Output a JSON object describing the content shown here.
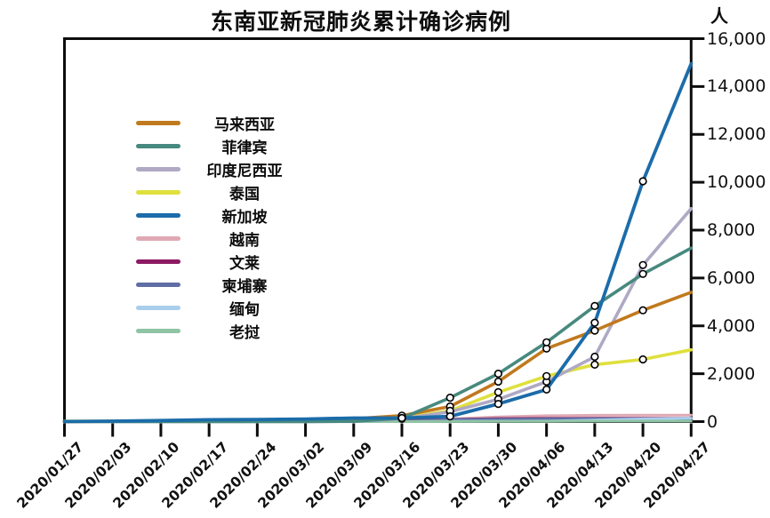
{
  "title": "东南亚新冠肺炎累计确诊病例",
  "y_axis": {
    "unit": "人",
    "tick_labels": [
      "0",
      "2,000",
      "4,000",
      "6,000",
      "8,000",
      "10,000",
      "12,000",
      "14,000",
      "16,000"
    ],
    "min": 0,
    "max": 16000,
    "step": 2000,
    "side": "right"
  },
  "chart_data": {
    "type": "line",
    "grid": false,
    "legend_position": "upper-left-inside",
    "ylim": [
      0,
      16000
    ],
    "categories": [
      "2020/01/27",
      "2020/02/03",
      "2020/02/10",
      "2020/02/17",
      "2020/02/24",
      "2020/03/02",
      "2020/03/09",
      "2020/03/16",
      "2020/03/23",
      "2020/03/30",
      "2020/04/06",
      "2020/04/13",
      "2020/04/20",
      "2020/04/27"
    ],
    "marker_indices": [
      7,
      8,
      9,
      10,
      11,
      12
    ],
    "draw_order": [
      5,
      6,
      7,
      8,
      9,
      3,
      2,
      0,
      1,
      4
    ],
    "series": [
      {
        "name": "马来西亚",
        "color": "#C1791E",
        "width": 3.6,
        "markers": true,
        "values": [
          4,
          10,
          18,
          22,
          22,
          29,
          117,
          250,
          630,
          1670,
          3050,
          3800,
          4650,
          5400
        ]
      },
      {
        "name": "菲律宾",
        "color": "#47897F",
        "width": 3.6,
        "markers": true,
        "values": [
          1,
          2,
          3,
          3,
          3,
          3,
          10,
          140,
          1000,
          2000,
          3310,
          4830,
          6170,
          7250
        ]
      },
      {
        "name": "印度尼西亚",
        "color": "#AFA9C4",
        "width": 3.6,
        "markers": true,
        "values": [
          0,
          0,
          0,
          0,
          0,
          2,
          6,
          120,
          410,
          930,
          1670,
          2710,
          6540,
          8900
        ]
      },
      {
        "name": "泰国",
        "color": "#DFE03C",
        "width": 3.6,
        "markers": true,
        "values": [
          14,
          19,
          32,
          35,
          40,
          43,
          50,
          150,
          450,
          1230,
          1900,
          2380,
          2600,
          3000
        ]
      },
      {
        "name": "新加坡",
        "color": "#1B6CA9",
        "width": 3.8,
        "markers": true,
        "values": [
          4,
          18,
          45,
          77,
          90,
          108,
          150,
          150,
          220,
          740,
          1340,
          4130,
          10040,
          14950
        ]
      },
      {
        "name": "越南",
        "color": "#DFA9B4",
        "width": 3.0,
        "markers": false,
        "values": [
          2,
          8,
          14,
          16,
          16,
          16,
          30,
          57,
          113,
          194,
          245,
          262,
          268,
          270
        ]
      },
      {
        "name": "文莱",
        "color": "#8C1A62",
        "width": 3.0,
        "markers": false,
        "values": [
          0,
          0,
          0,
          0,
          0,
          0,
          0,
          50,
          91,
          127,
          135,
          136,
          138,
          138
        ]
      },
      {
        "name": "柬埔寨",
        "color": "#5F6EA4",
        "width": 3.0,
        "markers": false,
        "values": [
          1,
          1,
          1,
          1,
          1,
          1,
          2,
          7,
          84,
          103,
          114,
          122,
          122,
          122
        ]
      },
      {
        "name": "缅甸",
        "color": "#A9CEEC",
        "width": 3.0,
        "markers": false,
        "values": [
          0,
          0,
          0,
          0,
          0,
          0,
          0,
          0,
          15,
          20,
          21,
          62,
          111,
          146
        ]
      },
      {
        "name": "老挝",
        "color": "#8FC4A4",
        "width": 3.0,
        "markers": false,
        "values": [
          0,
          0,
          0,
          0,
          0,
          0,
          0,
          0,
          2,
          8,
          12,
          19,
          19,
          19
        ]
      }
    ]
  },
  "frame": {
    "axis_color": "#0d0d0d",
    "marker_fill": "#ffffff",
    "marker_stroke": "#000000"
  }
}
